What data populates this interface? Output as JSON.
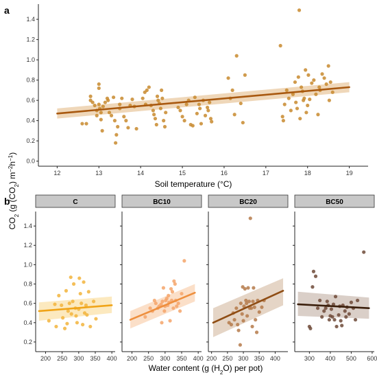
{
  "chart_data": [
    {
      "panel": "a",
      "type": "scatter",
      "xlabel": "Soil temperature (°C)",
      "xlim": [
        11.55,
        19.45
      ],
      "ylim": [
        -0.05,
        1.55
      ],
      "xticks": [
        "12",
        "13",
        "14",
        "15",
        "16",
        "17",
        "18",
        "19"
      ],
      "yticks": [
        "0.0",
        "0.2",
        "0.4",
        "0.6",
        "0.8",
        "1.0",
        "1.2",
        "1.4"
      ],
      "grid": false,
      "point_color": "#c8892e",
      "line_color": "#a8580f",
      "band_color": "#e9c9a1",
      "trend": {
        "x": [
          12.0,
          19.0
        ],
        "y": [
          0.47,
          0.73
        ],
        "lower": [
          0.42,
          0.68
        ],
        "upper": [
          0.52,
          0.78
        ]
      },
      "points": [
        [
          12.6,
          0.37
        ],
        [
          12.7,
          0.37
        ],
        [
          12.8,
          0.64
        ],
        [
          12.8,
          0.6
        ],
        [
          12.85,
          0.58
        ],
        [
          12.9,
          0.55
        ],
        [
          12.95,
          0.5
        ],
        [
          12.95,
          0.45
        ],
        [
          13.0,
          0.76
        ],
        [
          13.0,
          0.72
        ],
        [
          13.0,
          0.56
        ],
        [
          13.02,
          0.52
        ],
        [
          13.05,
          0.48
        ],
        [
          13.05,
          0.41
        ],
        [
          13.08,
          0.3
        ],
        [
          13.1,
          0.54
        ],
        [
          13.15,
          0.58
        ],
        [
          13.2,
          0.62
        ],
        [
          13.22,
          0.6
        ],
        [
          13.25,
          0.48
        ],
        [
          13.3,
          0.45
        ],
        [
          13.35,
          0.63
        ],
        [
          13.38,
          0.4
        ],
        [
          13.4,
          0.18
        ],
        [
          13.42,
          0.26
        ],
        [
          13.45,
          0.34
        ],
        [
          13.5,
          0.56
        ],
        [
          13.5,
          0.52
        ],
        [
          13.55,
          0.62
        ],
        [
          13.6,
          0.44
        ],
        [
          13.65,
          0.4
        ],
        [
          13.7,
          0.33
        ],
        [
          13.75,
          0.55
        ],
        [
          13.8,
          0.61
        ],
        [
          13.85,
          0.54
        ],
        [
          13.9,
          0.32
        ],
        [
          14.05,
          0.62
        ],
        [
          14.1,
          0.68
        ],
        [
          14.12,
          0.56
        ],
        [
          14.15,
          0.7
        ],
        [
          14.2,
          0.73
        ],
        [
          14.25,
          0.55
        ],
        [
          14.3,
          0.5
        ],
        [
          14.32,
          0.46
        ],
        [
          14.35,
          0.42
        ],
        [
          14.38,
          0.36
        ],
        [
          14.4,
          0.64
        ],
        [
          14.42,
          0.6
        ],
        [
          14.45,
          0.57
        ],
        [
          14.48,
          0.52
        ],
        [
          14.5,
          0.7
        ],
        [
          14.52,
          0.62
        ],
        [
          14.55,
          0.4
        ],
        [
          14.58,
          0.34
        ],
        [
          14.6,
          0.48
        ],
        [
          14.9,
          0.53
        ],
        [
          14.95,
          0.5
        ],
        [
          15.0,
          0.44
        ],
        [
          15.05,
          0.4
        ],
        [
          15.1,
          0.56
        ],
        [
          15.15,
          0.6
        ],
        [
          15.2,
          0.36
        ],
        [
          15.25,
          0.35
        ],
        [
          15.3,
          0.63
        ],
        [
          15.35,
          0.47
        ],
        [
          15.4,
          0.56
        ],
        [
          15.42,
          0.52
        ],
        [
          15.45,
          0.37
        ],
        [
          15.5,
          0.6
        ],
        [
          15.55,
          0.45
        ],
        [
          15.6,
          0.53
        ],
        [
          15.62,
          0.5
        ],
        [
          15.65,
          0.58
        ],
        [
          15.68,
          0.42
        ],
        [
          15.7,
          0.39
        ],
        [
          16.1,
          0.82
        ],
        [
          16.15,
          0.62
        ],
        [
          16.2,
          0.7
        ],
        [
          16.25,
          0.46
        ],
        [
          16.3,
          1.04
        ],
        [
          16.4,
          0.57
        ],
        [
          16.45,
          0.38
        ],
        [
          16.5,
          0.85
        ],
        [
          17.35,
          1.14
        ],
        [
          17.4,
          0.44
        ],
        [
          17.42,
          0.4
        ],
        [
          17.45,
          0.56
        ],
        [
          17.5,
          0.7
        ],
        [
          17.55,
          0.62
        ],
        [
          17.6,
          0.5
        ],
        [
          17.65,
          0.66
        ],
        [
          17.7,
          0.78
        ],
        [
          17.72,
          0.58
        ],
        [
          17.75,
          0.52
        ],
        [
          17.78,
          0.83
        ],
        [
          17.8,
          1.49
        ],
        [
          17.82,
          0.42
        ],
        [
          17.85,
          0.73
        ],
        [
          17.88,
          0.69
        ],
        [
          17.9,
          0.6
        ],
        [
          17.92,
          0.62
        ],
        [
          17.95,
          0.9
        ],
        [
          17.97,
          0.48
        ],
        [
          18.0,
          0.55
        ],
        [
          18.02,
          0.85
        ],
        [
          18.05,
          0.61
        ],
        [
          18.1,
          0.77
        ],
        [
          18.15,
          0.8
        ],
        [
          18.2,
          0.66
        ],
        [
          18.25,
          0.46
        ],
        [
          18.28,
          0.73
        ],
        [
          18.3,
          0.7
        ],
        [
          18.35,
          0.86
        ],
        [
          18.4,
          0.82
        ],
        [
          18.45,
          0.76
        ],
        [
          18.5,
          0.94
        ],
        [
          18.52,
          0.6
        ],
        [
          18.55,
          0.78
        ],
        [
          18.6,
          0.68
        ]
      ]
    },
    {
      "panel": "b",
      "facet": "C",
      "type": "scatter",
      "xlim": [
        170,
        410
      ],
      "ylim": [
        0.1,
        1.55
      ],
      "xticks": [
        "200",
        "250",
        "300",
        "350",
        "400"
      ],
      "yticks": [
        "0.2",
        "0.4",
        "0.6",
        "0.8",
        "1.0",
        "1.2",
        "1.4"
      ],
      "point_color": "#f2b43c",
      "line_color": "#f0a418",
      "band_color": "#fbe2aa",
      "trend": {
        "x": [
          180,
          400
        ],
        "y": [
          0.52,
          0.58
        ],
        "lower": [
          0.42,
          0.5
        ],
        "upper": [
          0.61,
          0.67
        ]
      },
      "points": [
        [
          210,
          0.42
        ],
        [
          228,
          0.59
        ],
        [
          232,
          0.36
        ],
        [
          240,
          0.68
        ],
        [
          248,
          0.58
        ],
        [
          252,
          0.45
        ],
        [
          258,
          0.34
        ],
        [
          262,
          0.73
        ],
        [
          265,
          0.39
        ],
        [
          268,
          0.52
        ],
        [
          272,
          0.6
        ],
        [
          276,
          0.87
        ],
        [
          278,
          0.49
        ],
        [
          282,
          0.62
        ],
        [
          285,
          0.8
        ],
        [
          290,
          0.55
        ],
        [
          292,
          0.47
        ],
        [
          295,
          0.4
        ],
        [
          300,
          0.54
        ],
        [
          302,
          0.86
        ],
        [
          305,
          0.7
        ],
        [
          308,
          0.6
        ],
        [
          312,
          0.38
        ],
        [
          315,
          0.82
        ],
        [
          318,
          0.5
        ],
        [
          322,
          0.58
        ],
        [
          325,
          0.48
        ],
        [
          330,
          0.72
        ],
        [
          335,
          0.36
        ],
        [
          345,
          0.62
        ],
        [
          352,
          0.44
        ]
      ]
    },
    {
      "panel": "b",
      "facet": "BC10",
      "type": "scatter",
      "xlim": [
        170,
        410
      ],
      "ylim": [
        0.1,
        1.55
      ],
      "xticks": [
        "200",
        "250",
        "300",
        "350",
        "400"
      ],
      "yticks": [
        "0.2",
        "0.4",
        "0.6",
        "0.8",
        "1.0",
        "1.2",
        "1.4"
      ],
      "point_color": "#f4a46a",
      "line_color": "#ee8f3e",
      "band_color": "#f9d4b5",
      "trend": {
        "x": [
          195,
          390
        ],
        "y": [
          0.43,
          0.71
        ],
        "lower": [
          0.34,
          0.62
        ],
        "upper": [
          0.52,
          0.8
        ]
      },
      "points": [
        [
          240,
          0.46
        ],
        [
          255,
          0.55
        ],
        [
          262,
          0.52
        ],
        [
          268,
          0.63
        ],
        [
          272,
          0.6
        ],
        [
          278,
          0.55
        ],
        [
          282,
          0.57
        ],
        [
          288,
          0.59
        ],
        [
          290,
          0.4
        ],
        [
          292,
          0.62
        ],
        [
          295,
          0.76
        ],
        [
          298,
          0.52
        ],
        [
          300,
          0.57
        ],
        [
          302,
          0.63
        ],
        [
          305,
          0.65
        ],
        [
          308,
          0.58
        ],
        [
          310,
          0.68
        ],
        [
          312,
          0.61
        ],
        [
          315,
          0.42
        ],
        [
          318,
          0.75
        ],
        [
          320,
          0.63
        ],
        [
          322,
          0.72
        ],
        [
          325,
          0.55
        ],
        [
          327,
          0.83
        ],
        [
          330,
          0.8
        ],
        [
          332,
          0.63
        ],
        [
          335,
          0.57
        ],
        [
          340,
          0.6
        ],
        [
          345,
          0.52
        ],
        [
          350,
          0.7
        ],
        [
          358,
          1.04
        ]
      ]
    },
    {
      "panel": "b",
      "facet": "BC20",
      "type": "scatter",
      "xlim": [
        190,
        440
      ],
      "ylim": [
        0.1,
        1.55
      ],
      "xticks": [
        "200",
        "250",
        "300",
        "350",
        "400"
      ],
      "yticks": [
        "0.2",
        "0.4",
        "0.6",
        "0.8",
        "1.0",
        "1.2",
        "1.4"
      ],
      "point_color": "#b57a4a",
      "line_color": "#8f4d14",
      "band_color": "#dcc7b3",
      "trend": {
        "x": [
          205,
          425
        ],
        "y": [
          0.4,
          0.73
        ],
        "lower": [
          0.25,
          0.58
        ],
        "upper": [
          0.55,
          0.86
        ]
      },
      "points": [
        [
          255,
          0.4
        ],
        [
          262,
          0.38
        ],
        [
          268,
          0.5
        ],
        [
          272,
          0.43
        ],
        [
          278,
          0.55
        ],
        [
          282,
          0.38
        ],
        [
          285,
          0.32
        ],
        [
          290,
          0.17
        ],
        [
          292,
          0.6
        ],
        [
          296,
          0.49
        ],
        [
          298,
          0.77
        ],
        [
          300,
          0.42
        ],
        [
          302,
          0.57
        ],
        [
          305,
          0.75
        ],
        [
          308,
          0.63
        ],
        [
          310,
          0.6
        ],
        [
          312,
          0.47
        ],
        [
          315,
          0.76
        ],
        [
          318,
          0.62
        ],
        [
          320,
          0.55
        ],
        [
          322,
          1.48
        ],
        [
          325,
          0.55
        ],
        [
          328,
          0.36
        ],
        [
          330,
          0.62
        ],
        [
          332,
          0.76
        ],
        [
          335,
          0.56
        ],
        [
          338,
          0.43
        ],
        [
          342,
          0.3
        ],
        [
          345,
          0.63
        ],
        [
          350,
          0.51
        ],
        [
          358,
          0.56
        ],
        [
          365,
          0.63
        ]
      ]
    },
    {
      "panel": "b",
      "facet": "BC50",
      "type": "scatter",
      "xlim": [
        230,
        610
      ],
      "ylim": [
        0.1,
        1.55
      ],
      "xticks": [
        "300",
        "400",
        "500",
        "600"
      ],
      "yticks": [
        "0.2",
        "0.4",
        "0.6",
        "0.8",
        "1.0",
        "1.2",
        "1.4"
      ],
      "point_color": "#6e4a38",
      "line_color": "#3b1f0c",
      "band_color": "#cdbfb5",
      "trend": {
        "x": [
          245,
          585
        ],
        "y": [
          0.59,
          0.55
        ],
        "lower": [
          0.47,
          0.44
        ],
        "upper": [
          0.72,
          0.66
        ]
      },
      "points": [
        [
          300,
          0.36
        ],
        [
          305,
          0.34
        ],
        [
          315,
          0.77
        ],
        [
          320,
          0.93
        ],
        [
          330,
          0.88
        ],
        [
          340,
          0.55
        ],
        [
          350,
          0.63
        ],
        [
          360,
          0.46
        ],
        [
          370,
          0.52
        ],
        [
          378,
          0.55
        ],
        [
          385,
          0.62
        ],
        [
          390,
          0.58
        ],
        [
          395,
          0.43
        ],
        [
          400,
          0.47
        ],
        [
          405,
          0.54
        ],
        [
          410,
          0.46
        ],
        [
          415,
          0.59
        ],
        [
          420,
          0.43
        ],
        [
          425,
          0.67
        ],
        [
          430,
          0.36
        ],
        [
          440,
          0.48
        ],
        [
          445,
          0.57
        ],
        [
          450,
          0.42
        ],
        [
          455,
          0.37
        ],
        [
          460,
          0.58
        ],
        [
          470,
          0.52
        ],
        [
          475,
          0.46
        ],
        [
          480,
          0.56
        ],
        [
          490,
          0.49
        ],
        [
          500,
          0.61
        ],
        [
          510,
          0.55
        ],
        [
          520,
          0.43
        ],
        [
          530,
          0.63
        ],
        [
          560,
          1.13
        ]
      ]
    }
  ],
  "labels": {
    "panel_a": "a",
    "panel_b": "b",
    "x_a": "Soil temperature (°C)",
    "x_b_main": "Water content (g (H",
    "x_b_sub": "2",
    "x_b_end": "O) per pot)",
    "y_main": "CO",
    "y_sub": "2",
    "y_mid": " (g (CO",
    "y_sub2": "2",
    "y_mid2": ") m",
    "y_sup": "−2",
    "y_mid3": "h",
    "y_sup2": "−1",
    "y_end": ")"
  }
}
